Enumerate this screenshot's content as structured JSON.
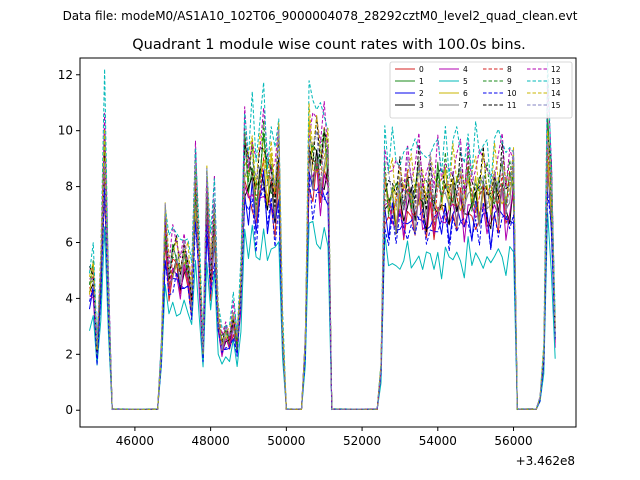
{
  "figure": {
    "suptitle": "Data file: modeM0/AS1A10_102T06_9000004078_28292cztM0_level2_quad_clean.evt",
    "offset_label": "+3.462e8"
  },
  "chart_data": {
    "type": "line",
    "title": "Quadrant 1 module wise count rates with 100.0s bins.",
    "xlabel": "",
    "ylabel": "",
    "x_offset": 346200000,
    "xlim": [
      44550,
      57650
    ],
    "ylim": [
      -0.6,
      12.6
    ],
    "xticks": [
      46000,
      48000,
      50000,
      52000,
      54000,
      56000
    ],
    "xtick_labels": [
      "46000",
      "48000",
      "50000",
      "52000",
      "54000",
      "56000"
    ],
    "yticks": [
      0,
      2,
      4,
      6,
      8,
      10,
      12
    ],
    "ytick_labels": [
      "0",
      "2",
      "4",
      "6",
      "8",
      "10",
      "12"
    ],
    "grid": false,
    "legend_position": "upper-right",
    "segments": [
      {
        "x": [
          44800,
          44900,
          45000,
          45100,
          45200,
          45300,
          45400
        ],
        "values": [
          4.2,
          4.6,
          2.0,
          4.5,
          8.6,
          3.8,
          0.2
        ]
      },
      {
        "x": [
          45400,
          46600
        ],
        "values": [
          0.2,
          0.2
        ]
      },
      {
        "x": [
          46600,
          46700,
          46800,
          46900,
          47000,
          47100,
          47200,
          47300,
          47400,
          47500,
          47600,
          47700,
          47800,
          47900,
          48000,
          48100,
          48200,
          48300,
          48400,
          48500,
          48600,
          48700,
          48800,
          48900,
          49000,
          49100,
          49200,
          49300,
          49400,
          49500,
          49600,
          49700,
          49800,
          49900,
          50000
        ],
        "values": [
          0.2,
          2.0,
          6.2,
          4.5,
          5.0,
          5.1,
          4.6,
          5.2,
          4.8,
          3.8,
          7.6,
          4.8,
          2.0,
          7.4,
          4.6,
          6.4,
          3.0,
          2.2,
          2.6,
          2.4,
          3.1,
          2.2,
          4.0,
          8.5,
          7.8,
          8.4,
          7.0,
          7.9,
          8.6,
          7.5,
          8.0,
          7.1,
          8.4,
          2.6,
          0.2
        ]
      },
      {
        "x": [
          50000,
          50400
        ],
        "values": [
          0.2,
          0.2
        ]
      },
      {
        "x": [
          50400,
          50500,
          50600,
          50700,
          50800,
          50900,
          51000,
          51100,
          51200
        ],
        "values": [
          0.2,
          2.2,
          9.0,
          8.3,
          8.6,
          8.0,
          8.7,
          8.4,
          0.2
        ]
      },
      {
        "x": [
          51200,
          52400
        ],
        "values": [
          0.2,
          0.2
        ]
      },
      {
        "x": [
          52400,
          52500,
          52600,
          52700,
          52800,
          52900,
          53000,
          53100,
          53200,
          53300,
          53400,
          53500,
          53600,
          53700,
          53800,
          53900,
          54000,
          54100,
          54200,
          54300,
          54400,
          54500,
          54600,
          54700,
          54800,
          54900,
          55000,
          55100,
          55200,
          55300,
          55400,
          55500,
          55600,
          55700,
          55800,
          55900,
          56000,
          56100
        ],
        "values": [
          0.2,
          1.4,
          7.7,
          7.0,
          7.3,
          6.8,
          7.5,
          7.0,
          7.6,
          7.2,
          6.9,
          7.8,
          7.3,
          7.0,
          7.6,
          6.8,
          7.4,
          7.1,
          7.7,
          7.0,
          7.5,
          7.2,
          7.6,
          6.9,
          7.8,
          7.1,
          7.4,
          7.0,
          7.7,
          7.3,
          6.9,
          7.6,
          7.2,
          7.8,
          7.0,
          7.5,
          7.9,
          0.2
        ]
      },
      {
        "x": [
          56100,
          56500
        ],
        "values": [
          0.2,
          0.2
        ]
      },
      {
        "x": [
          56500,
          56600,
          56700,
          56800,
          56900,
          57000,
          57100
        ],
        "values": [
          0.2,
          0.2,
          0.4,
          1.8,
          9.0,
          7.2,
          2.6
        ]
      }
    ],
    "series": [
      {
        "name": "0",
        "color": "#d62020",
        "dash": "solid",
        "scale": 0.95,
        "phase": 1
      },
      {
        "name": "1",
        "color": "#1a8a1a",
        "dash": "solid",
        "scale": 1.08,
        "phase": 2
      },
      {
        "name": "2",
        "color": "#0000ee",
        "dash": "solid",
        "scale": 0.93,
        "phase": 3
      },
      {
        "name": "3",
        "color": "#000000",
        "dash": "solid",
        "scale": 1.0,
        "phase": 4
      },
      {
        "name": "4",
        "color": "#b000b0",
        "dash": "solid",
        "scale": 0.96,
        "phase": 5
      },
      {
        "name": "5",
        "color": "#00b8b8",
        "dash": "solid",
        "scale": 0.74,
        "phase": 6
      },
      {
        "name": "6",
        "color": "#c8b400",
        "dash": "solid",
        "scale": 1.05,
        "phase": 7
      },
      {
        "name": "7",
        "color": "#808080",
        "dash": "solid",
        "scale": 1.02,
        "phase": 8
      },
      {
        "name": "8",
        "color": "#d62020",
        "dash": "dashed",
        "scale": 1.06,
        "phase": 9
      },
      {
        "name": "9",
        "color": "#1a8a1a",
        "dash": "dashed",
        "scale": 1.1,
        "phase": 10
      },
      {
        "name": "10",
        "color": "#0000ee",
        "dash": "dashed",
        "scale": 0.9,
        "phase": 11
      },
      {
        "name": "11",
        "color": "#000000",
        "dash": "dashed",
        "scale": 1.12,
        "phase": 12
      },
      {
        "name": "12",
        "color": "#b000b0",
        "dash": "dashed",
        "scale": 1.2,
        "phase": 13
      },
      {
        "name": "13",
        "color": "#00b8b8",
        "dash": "dashed",
        "scale": 1.28,
        "phase": 14
      },
      {
        "name": "14",
        "color": "#c8b400",
        "dash": "dashed",
        "scale": 1.15,
        "phase": 15
      },
      {
        "name": "15",
        "color": "#8080c0",
        "dash": "dashed",
        "scale": 1.1,
        "phase": 16
      }
    ]
  }
}
